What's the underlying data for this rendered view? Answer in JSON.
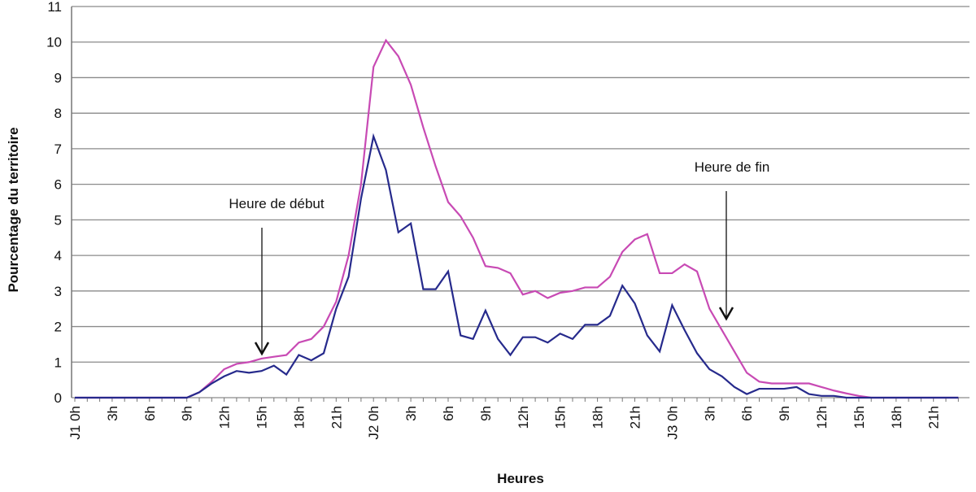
{
  "chart_data": {
    "type": "line",
    "x_label": "Heures",
    "y_label": "Pourcentage du territoire",
    "annotations": [
      "Heure de début",
      "Heure de fin"
    ],
    "categories": [
      "J1 0h",
      null,
      null,
      "3h",
      null,
      null,
      "6h",
      null,
      null,
      "9h",
      null,
      null,
      "12h",
      null,
      null,
      "15h",
      null,
      null,
      "18h",
      null,
      null,
      "21h",
      null,
      null,
      "J2 0h",
      null,
      null,
      "3h",
      null,
      null,
      "6h",
      null,
      null,
      "9h",
      null,
      null,
      "12h",
      null,
      null,
      "15h",
      null,
      null,
      "18h",
      null,
      null,
      "21h",
      null,
      null,
      "J3 0h",
      null,
      null,
      "3h",
      null,
      null,
      "6h",
      null,
      null,
      "9h",
      null,
      null,
      "12h",
      null,
      null,
      "15h",
      null,
      null,
      "18h",
      null,
      null,
      "21h",
      null,
      null
    ],
    "series": [
      {
        "color": "#c84ab4",
        "values": [
          0,
          0,
          0,
          0,
          0,
          0,
          0,
          0,
          0,
          0,
          0.15,
          0.45,
          0.8,
          0.95,
          1.0,
          1.1,
          1.15,
          1.2,
          1.55,
          1.65,
          2.0,
          2.7,
          4.0,
          6.0,
          9.3,
          10.05,
          9.6,
          8.8,
          7.6,
          6.5,
          5.5,
          5.1,
          4.5,
          3.7,
          3.65,
          3.5,
          2.9,
          3.0,
          2.8,
          2.95,
          3.0,
          3.1,
          3.1,
          3.4,
          4.1,
          4.45,
          4.6,
          3.5,
          3.5,
          3.75,
          3.55,
          2.5,
          1.9,
          1.3,
          0.7,
          0.45,
          0.4,
          0.4,
          0.4,
          0.4,
          0.3,
          0.2,
          0.12,
          0.05,
          0,
          0,
          0,
          0,
          0,
          0,
          0,
          0
        ]
      },
      {
        "color": "#262a8c",
        "values": [
          0,
          0,
          0,
          0,
          0,
          0,
          0,
          0,
          0,
          0,
          0.15,
          0.4,
          0.6,
          0.75,
          0.7,
          0.75,
          0.9,
          0.65,
          1.2,
          1.05,
          1.25,
          2.5,
          3.4,
          5.6,
          7.35,
          6.4,
          4.65,
          4.9,
          3.05,
          3.05,
          3.55,
          1.75,
          1.65,
          2.45,
          1.65,
          1.2,
          1.7,
          1.7,
          1.55,
          1.8,
          1.65,
          2.05,
          2.05,
          2.3,
          3.15,
          2.65,
          1.75,
          1.3,
          2.6,
          1.9,
          1.25,
          0.8,
          0.6,
          0.3,
          0.1,
          0.25,
          0.25,
          0.25,
          0.3,
          0.1,
          0.05,
          0.05,
          0,
          0,
          0,
          0,
          0,
          0,
          0,
          0,
          0,
          0
        ]
      }
    ],
    "ylim": [
      0,
      11
    ],
    "yticks": [
      0,
      1,
      2,
      3,
      4,
      5,
      6,
      7,
      8,
      9,
      10,
      11
    ],
    "grid": true
  }
}
